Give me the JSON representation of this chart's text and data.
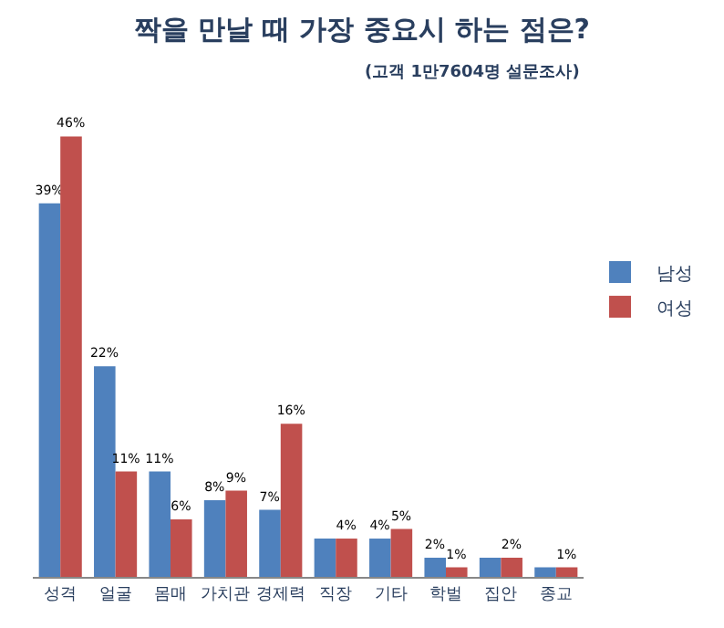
{
  "chart_data": {
    "type": "bar",
    "title": "짝을 만날 때 가장 중요시 하는 점은?",
    "subtitle": "(고객 1만7604명 설문조사)",
    "categories": [
      "성격",
      "얼굴",
      "몸매",
      "가치관",
      "경제력",
      "직장",
      "기타",
      "학벌",
      "집안",
      "종교"
    ],
    "series": [
      {
        "name": "남성",
        "color": "#4f81bd",
        "values": [
          39,
          22,
          11,
          8,
          7,
          4,
          4,
          2,
          2,
          1
        ],
        "value_labels": [
          "39%",
          "22%",
          "11%",
          "8%",
          "7%",
          null,
          "4%",
          "2%",
          null,
          null
        ]
      },
      {
        "name": "여성",
        "color": "#c0504d",
        "values": [
          46,
          11,
          6,
          9,
          16,
          4,
          5,
          1,
          2,
          1
        ],
        "value_labels": [
          "46%",
          "11%",
          "6%",
          "9%",
          "16%",
          "4%",
          "5%",
          "1%",
          "2%",
          "1%"
        ]
      }
    ],
    "legend": "right"
  }
}
